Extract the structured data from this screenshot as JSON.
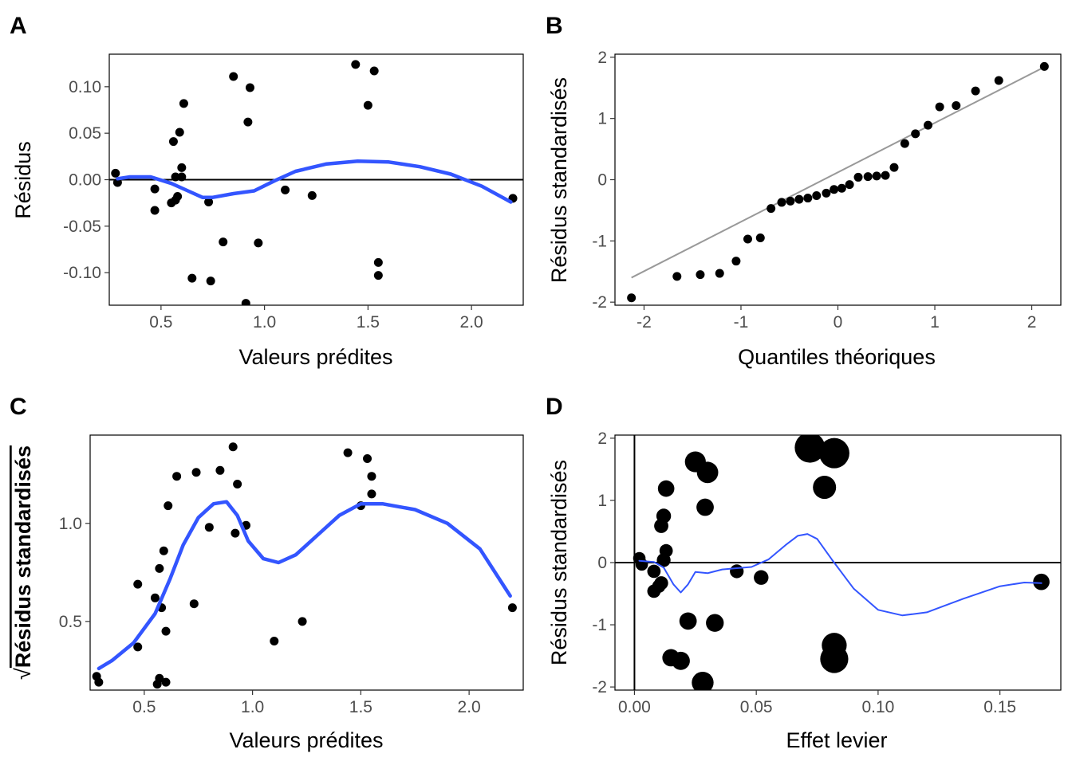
{
  "panels": {
    "A": {
      "tag": "A",
      "xlabel": "Valeurs prédites",
      "ylabel": "Résidus",
      "xticks": [
        "0.5",
        "1.0",
        "1.5",
        "2.0"
      ],
      "yticks": [
        "-0.10",
        "-0.05",
        "0.00",
        "0.05",
        "0.10"
      ]
    },
    "B": {
      "tag": "B",
      "xlabel": "Quantiles théoriques",
      "ylabel": "Résidus standardisés",
      "xticks": [
        "-2",
        "-1",
        "0",
        "1",
        "2"
      ],
      "yticks": [
        "-2",
        "-1",
        "0",
        "1",
        "2"
      ]
    },
    "C": {
      "tag": "C",
      "xlabel": "Valeurs prédites",
      "ylabel": "Résidus standardisés",
      "ylabel_prefix": "√",
      "xticks": [
        "0.5",
        "1.0",
        "1.5",
        "2.0"
      ],
      "yticks": [
        "0.5",
        "1.0"
      ]
    },
    "D": {
      "tag": "D",
      "xlabel": "Effet levier",
      "ylabel": "Résidus standardisés",
      "xticks": [
        "0.00",
        "0.05",
        "0.10",
        "0.15"
      ],
      "yticks": [
        "-2",
        "-1",
        "0",
        "1",
        "2"
      ]
    }
  },
  "colors": {
    "points": "#000000",
    "smooth": "#3355ff",
    "refline": "#999999",
    "hline": "#000000"
  },
  "chart_data": [
    {
      "panel": "A",
      "type": "scatter",
      "xlabel": "Valeurs prédites",
      "ylabel": "Résidus",
      "xlim": [
        0.25,
        2.25
      ],
      "ylim": [
        -0.135,
        0.135
      ],
      "hline": 0,
      "points": [
        [
          0.28,
          0.007
        ],
        [
          0.29,
          -0.003
        ],
        [
          0.47,
          -0.01
        ],
        [
          0.47,
          -0.033
        ],
        [
          0.55,
          -0.025
        ],
        [
          0.56,
          0.041
        ],
        [
          0.57,
          -0.022
        ],
        [
          0.57,
          0.003
        ],
        [
          0.58,
          -0.018
        ],
        [
          0.59,
          0.051
        ],
        [
          0.6,
          0.003
        ],
        [
          0.6,
          0.013
        ],
        [
          0.61,
          0.082
        ],
        [
          0.65,
          -0.106
        ],
        [
          0.73,
          -0.024
        ],
        [
          0.74,
          -0.109
        ],
        [
          0.8,
          -0.067
        ],
        [
          0.85,
          0.111
        ],
        [
          0.91,
          -0.133
        ],
        [
          0.92,
          0.062
        ],
        [
          0.93,
          0.099
        ],
        [
          0.97,
          -0.068
        ],
        [
          1.1,
          -0.011
        ],
        [
          1.23,
          -0.017
        ],
        [
          1.44,
          0.124
        ],
        [
          1.5,
          0.08
        ],
        [
          1.53,
          0.117
        ],
        [
          1.55,
          -0.089
        ],
        [
          1.55,
          -0.103
        ],
        [
          2.2,
          -0.02
        ]
      ],
      "smooth": [
        [
          0.29,
          0.001
        ],
        [
          0.35,
          0.003
        ],
        [
          0.45,
          0.003
        ],
        [
          0.55,
          -0.004
        ],
        [
          0.63,
          -0.012
        ],
        [
          0.7,
          -0.019
        ],
        [
          0.75,
          -0.019
        ],
        [
          0.85,
          -0.015
        ],
        [
          0.95,
          -0.012
        ],
        [
          1.05,
          -0.001
        ],
        [
          1.15,
          0.009
        ],
        [
          1.3,
          0.017
        ],
        [
          1.45,
          0.02
        ],
        [
          1.6,
          0.019
        ],
        [
          1.75,
          0.014
        ],
        [
          1.9,
          0.006
        ],
        [
          2.05,
          -0.007
        ],
        [
          2.19,
          -0.024
        ]
      ]
    },
    {
      "panel": "B",
      "type": "scatter",
      "xlabel": "Quantiles théoriques",
      "ylabel": "Résidus standardisés",
      "xlim": [
        -2.3,
        2.3
      ],
      "ylim": [
        -2.05,
        2.05
      ],
      "refline": [
        [
          -2.13,
          -1.6
        ],
        [
          2.13,
          1.84
        ]
      ],
      "points": [
        [
          -2.13,
          -1.93
        ],
        [
          -1.66,
          -1.58
        ],
        [
          -1.42,
          -1.55
        ],
        [
          -1.22,
          -1.53
        ],
        [
          -1.05,
          -1.33
        ],
        [
          -0.93,
          -0.97
        ],
        [
          -0.8,
          -0.95
        ],
        [
          -0.69,
          -0.47
        ],
        [
          -0.58,
          -0.37
        ],
        [
          -0.49,
          -0.35
        ],
        [
          -0.4,
          -0.32
        ],
        [
          -0.31,
          -0.3
        ],
        [
          -0.22,
          -0.26
        ],
        [
          -0.12,
          -0.22
        ],
        [
          -0.04,
          -0.16
        ],
        [
          0.04,
          -0.14
        ],
        [
          0.12,
          -0.08
        ],
        [
          0.21,
          0.04
        ],
        [
          0.31,
          0.05
        ],
        [
          0.4,
          0.06
        ],
        [
          0.49,
          0.07
        ],
        [
          0.58,
          0.2
        ],
        [
          0.69,
          0.59
        ],
        [
          0.8,
          0.75
        ],
        [
          0.93,
          0.89
        ],
        [
          1.05,
          1.19
        ],
        [
          1.22,
          1.21
        ],
        [
          1.42,
          1.45
        ],
        [
          1.66,
          1.62
        ],
        [
          2.13,
          1.85
        ]
      ]
    },
    {
      "panel": "C",
      "type": "scatter",
      "xlabel": "Valeurs prédites",
      "ylabel": "√|Résidus standardisés|",
      "xlim": [
        0.25,
        2.25
      ],
      "ylim": [
        0.15,
        1.45
      ],
      "points": [
        [
          0.28,
          0.22
        ],
        [
          0.29,
          0.19
        ],
        [
          0.47,
          0.37
        ],
        [
          0.47,
          0.69
        ],
        [
          0.55,
          0.62
        ],
        [
          0.56,
          0.18
        ],
        [
          0.57,
          0.77
        ],
        [
          0.57,
          0.21
        ],
        [
          0.58,
          0.57
        ],
        [
          0.59,
          0.86
        ],
        [
          0.6,
          0.19
        ],
        [
          0.6,
          0.45
        ],
        [
          0.61,
          1.09
        ],
        [
          0.65,
          1.24
        ],
        [
          0.73,
          0.59
        ],
        [
          0.74,
          1.26
        ],
        [
          0.8,
          0.98
        ],
        [
          0.85,
          1.27
        ],
        [
          0.91,
          1.39
        ],
        [
          0.92,
          0.95
        ],
        [
          0.93,
          1.2
        ],
        [
          0.97,
          0.99
        ],
        [
          1.1,
          0.4
        ],
        [
          1.23,
          0.5
        ],
        [
          1.44,
          1.36
        ],
        [
          1.5,
          1.09
        ],
        [
          1.53,
          1.33
        ],
        [
          1.55,
          1.24
        ],
        [
          1.55,
          1.15
        ],
        [
          2.2,
          0.57
        ]
      ],
      "smooth": [
        [
          0.29,
          0.26
        ],
        [
          0.35,
          0.3
        ],
        [
          0.45,
          0.39
        ],
        [
          0.55,
          0.54
        ],
        [
          0.62,
          0.72
        ],
        [
          0.68,
          0.89
        ],
        [
          0.75,
          1.03
        ],
        [
          0.82,
          1.1
        ],
        [
          0.88,
          1.11
        ],
        [
          0.93,
          1.04
        ],
        [
          0.98,
          0.91
        ],
        [
          1.05,
          0.82
        ],
        [
          1.12,
          0.8
        ],
        [
          1.2,
          0.84
        ],
        [
          1.3,
          0.94
        ],
        [
          1.4,
          1.04
        ],
        [
          1.5,
          1.1
        ],
        [
          1.6,
          1.1
        ],
        [
          1.75,
          1.07
        ],
        [
          1.9,
          1.0
        ],
        [
          2.05,
          0.87
        ],
        [
          2.19,
          0.63
        ]
      ]
    },
    {
      "panel": "D",
      "type": "scatter",
      "xlabel": "Effet levier",
      "ylabel": "Résidus standardisés",
      "xlim": [
        -0.008,
        0.175
      ],
      "ylim": [
        -2.05,
        2.05
      ],
      "hline": 0,
      "vline": 0,
      "points": [
        [
          0.002,
          0.07,
          0.2
        ],
        [
          0.003,
          -0.03,
          0.2
        ],
        [
          0.008,
          -0.46,
          0.24
        ],
        [
          0.008,
          -0.14,
          0.24
        ],
        [
          0.01,
          -0.38,
          0.24
        ],
        [
          0.011,
          -0.33,
          0.26
        ],
        [
          0.011,
          0.59,
          0.28
        ],
        [
          0.012,
          0.04,
          0.26
        ],
        [
          0.012,
          0.75,
          0.3
        ],
        [
          0.013,
          0.19,
          0.24
        ],
        [
          0.013,
          1.19,
          0.38
        ],
        [
          0.015,
          -1.53,
          0.42
        ],
        [
          0.019,
          -1.58,
          0.46
        ],
        [
          0.022,
          -0.94,
          0.42
        ],
        [
          0.025,
          1.62,
          0.58
        ],
        [
          0.028,
          -1.93,
          0.62
        ],
        [
          0.029,
          0.89,
          0.42
        ],
        [
          0.03,
          1.45,
          0.6
        ],
        [
          0.033,
          -0.97,
          0.44
        ],
        [
          0.042,
          -0.14,
          0.26
        ],
        [
          0.052,
          -0.24,
          0.3
        ],
        [
          0.072,
          1.85,
          1.0
        ],
        [
          0.078,
          1.21,
          0.68
        ],
        [
          0.082,
          -1.33,
          0.76
        ],
        [
          0.082,
          -1.55,
          0.9
        ],
        [
          0.082,
          1.76,
          1.0
        ],
        [
          0.167,
          -0.31,
          0.38
        ]
      ],
      "smooth": [
        [
          0.002,
          0.03
        ],
        [
          0.008,
          0.01
        ],
        [
          0.012,
          -0.08
        ],
        [
          0.016,
          -0.35
        ],
        [
          0.019,
          -0.48
        ],
        [
          0.022,
          -0.35
        ],
        [
          0.025,
          -0.15
        ],
        [
          0.03,
          -0.17
        ],
        [
          0.036,
          -0.11
        ],
        [
          0.042,
          -0.09
        ],
        [
          0.048,
          -0.07
        ],
        [
          0.055,
          0.05
        ],
        [
          0.062,
          0.28
        ],
        [
          0.067,
          0.43
        ],
        [
          0.071,
          0.46
        ],
        [
          0.075,
          0.38
        ],
        [
          0.081,
          0.05
        ],
        [
          0.09,
          -0.42
        ],
        [
          0.1,
          -0.76
        ],
        [
          0.11,
          -0.85
        ],
        [
          0.12,
          -0.8
        ],
        [
          0.135,
          -0.58
        ],
        [
          0.15,
          -0.38
        ],
        [
          0.16,
          -0.32
        ],
        [
          0.167,
          -0.33
        ]
      ]
    }
  ]
}
